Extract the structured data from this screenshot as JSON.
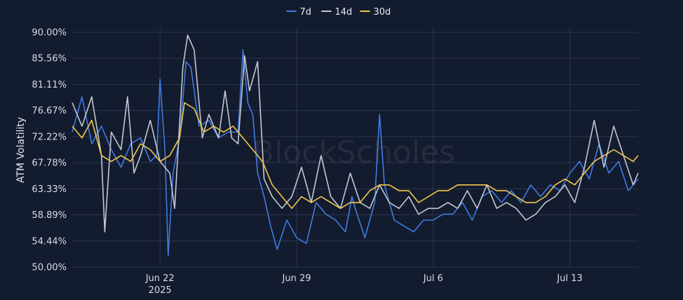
{
  "chart_data": {
    "type": "line",
    "watermark": "BlockScholes",
    "xlabel": "",
    "ylabel": "ATM Volatility",
    "x_ticks": [
      {
        "date": "2025-06-22",
        "label": "Jun 22",
        "sublabel": "2025"
      },
      {
        "date": "2025-06-29",
        "label": "Jun 29",
        "sublabel": ""
      },
      {
        "date": "2025-07-06",
        "label": "Jul 6",
        "sublabel": ""
      },
      {
        "date": "2025-07-13",
        "label": "Jul 13",
        "sublabel": ""
      }
    ],
    "x_range": [
      "2025-06-17T12:00",
      "2025-07-16T12:00"
    ],
    "y_ticks": [
      "50.00%",
      "54.44%",
      "58.89%",
      "63.33%",
      "67.78%",
      "72.22%",
      "76.67%",
      "81.11%",
      "85.56%",
      "90.00%"
    ],
    "ylim": [
      50,
      90
    ],
    "grid": true,
    "legend_position": "top-center",
    "series": [
      {
        "name": "7d",
        "color": "#3f7be0",
        "points": [
          [
            "2025-06-17T12:00",
            73
          ],
          [
            "2025-06-18T00:00",
            79
          ],
          [
            "2025-06-18T12:00",
            71
          ],
          [
            "2025-06-19T00:00",
            74
          ],
          [
            "2025-06-19T12:00",
            70
          ],
          [
            "2025-06-20T00:00",
            67
          ],
          [
            "2025-06-20T12:00",
            71
          ],
          [
            "2025-06-21T00:00",
            72
          ],
          [
            "2025-06-21T12:00",
            68
          ],
          [
            "2025-06-21T20:00",
            69
          ],
          [
            "2025-06-22T00:00",
            82
          ],
          [
            "2025-06-22T06:00",
            70
          ],
          [
            "2025-06-22T10:00",
            52
          ],
          [
            "2025-06-22T16:00",
            66
          ],
          [
            "2025-06-23T00:00",
            72
          ],
          [
            "2025-06-23T08:00",
            85
          ],
          [
            "2025-06-23T14:00",
            84
          ],
          [
            "2025-06-24T00:00",
            74
          ],
          [
            "2025-06-24T12:00",
            75
          ],
          [
            "2025-06-25T00:00",
            72
          ],
          [
            "2025-06-25T12:00",
            73
          ],
          [
            "2025-06-26T00:00",
            73
          ],
          [
            "2025-06-26T06:00",
            87
          ],
          [
            "2025-06-26T12:00",
            78
          ],
          [
            "2025-06-26T18:00",
            76
          ],
          [
            "2025-06-27T00:00",
            66
          ],
          [
            "2025-06-27T08:00",
            62
          ],
          [
            "2025-06-27T16:00",
            57
          ],
          [
            "2025-06-28T00:00",
            53
          ],
          [
            "2025-06-28T12:00",
            58
          ],
          [
            "2025-06-29T00:00",
            55
          ],
          [
            "2025-06-29T12:00",
            54
          ],
          [
            "2025-06-30T00:00",
            61
          ],
          [
            "2025-06-30T12:00",
            59
          ],
          [
            "2025-07-01T00:00",
            58
          ],
          [
            "2025-07-01T12:00",
            56
          ],
          [
            "2025-07-01T20:00",
            62
          ],
          [
            "2025-07-02T00:00",
            60
          ],
          [
            "2025-07-02T12:00",
            55
          ],
          [
            "2025-07-03T00:00",
            61
          ],
          [
            "2025-07-03T06:00",
            76
          ],
          [
            "2025-07-03T12:00",
            64
          ],
          [
            "2025-07-04T00:00",
            58
          ],
          [
            "2025-07-04T12:00",
            57
          ],
          [
            "2025-07-05T00:00",
            56
          ],
          [
            "2025-07-05T12:00",
            58
          ],
          [
            "2025-07-06T00:00",
            58
          ],
          [
            "2025-07-06T12:00",
            59
          ],
          [
            "2025-07-07T00:00",
            59
          ],
          [
            "2025-07-07T12:00",
            61
          ],
          [
            "2025-07-08T00:00",
            58
          ],
          [
            "2025-07-08T12:00",
            62
          ],
          [
            "2025-07-09T00:00",
            63
          ],
          [
            "2025-07-09T12:00",
            61
          ],
          [
            "2025-07-10T00:00",
            63
          ],
          [
            "2025-07-10T12:00",
            61
          ],
          [
            "2025-07-11T00:00",
            64
          ],
          [
            "2025-07-11T12:00",
            62
          ],
          [
            "2025-07-12T00:00",
            64
          ],
          [
            "2025-07-12T12:00",
            63
          ],
          [
            "2025-07-13T00:00",
            66
          ],
          [
            "2025-07-13T12:00",
            68
          ],
          [
            "2025-07-14T00:00",
            65
          ],
          [
            "2025-07-14T12:00",
            71
          ],
          [
            "2025-07-15T00:00",
            66
          ],
          [
            "2025-07-15T12:00",
            68
          ],
          [
            "2025-07-16T00:00",
            63
          ],
          [
            "2025-07-16T12:00",
            65
          ]
        ]
      },
      {
        "name": "14d",
        "color": "#c4c8d0",
        "points": [
          [
            "2025-06-17T12:00",
            78
          ],
          [
            "2025-06-18T00:00",
            74
          ],
          [
            "2025-06-18T12:00",
            79
          ],
          [
            "2025-06-19T00:00",
            69
          ],
          [
            "2025-06-19T04:00",
            56
          ],
          [
            "2025-06-19T12:00",
            73
          ],
          [
            "2025-06-20T00:00",
            70
          ],
          [
            "2025-06-20T08:00",
            79
          ],
          [
            "2025-06-20T16:00",
            66
          ],
          [
            "2025-06-21T00:00",
            69
          ],
          [
            "2025-06-21T12:00",
            75
          ],
          [
            "2025-06-22T00:00",
            68
          ],
          [
            "2025-06-22T12:00",
            66
          ],
          [
            "2025-06-22T18:00",
            60
          ],
          [
            "2025-06-23T04:00",
            84
          ],
          [
            "2025-06-23T10:00",
            89.5
          ],
          [
            "2025-06-23T18:00",
            87
          ],
          [
            "2025-06-24T04:00",
            72
          ],
          [
            "2025-06-24T12:00",
            76
          ],
          [
            "2025-06-25T00:00",
            72
          ],
          [
            "2025-06-25T08:00",
            80
          ],
          [
            "2025-06-25T16:00",
            72
          ],
          [
            "2025-06-26T00:00",
            71
          ],
          [
            "2025-06-26T08:00",
            86
          ],
          [
            "2025-06-26T14:00",
            80
          ],
          [
            "2025-06-27T00:00",
            85
          ],
          [
            "2025-06-27T08:00",
            65
          ],
          [
            "2025-06-27T18:00",
            62
          ],
          [
            "2025-06-28T06:00",
            60
          ],
          [
            "2025-06-28T18:00",
            62
          ],
          [
            "2025-06-29T06:00",
            67
          ],
          [
            "2025-06-29T18:00",
            61
          ],
          [
            "2025-06-30T06:00",
            69
          ],
          [
            "2025-06-30T18:00",
            62
          ],
          [
            "2025-07-01T06:00",
            60
          ],
          [
            "2025-07-01T18:00",
            66
          ],
          [
            "2025-07-02T06:00",
            61
          ],
          [
            "2025-07-02T18:00",
            60
          ],
          [
            "2025-07-03T06:00",
            64
          ],
          [
            "2025-07-03T18:00",
            61
          ],
          [
            "2025-07-04T06:00",
            60
          ],
          [
            "2025-07-04T18:00",
            62
          ],
          [
            "2025-07-05T06:00",
            59
          ],
          [
            "2025-07-05T18:00",
            60
          ],
          [
            "2025-07-06T06:00",
            60
          ],
          [
            "2025-07-06T18:00",
            61
          ],
          [
            "2025-07-07T06:00",
            60
          ],
          [
            "2025-07-07T18:00",
            63
          ],
          [
            "2025-07-08T06:00",
            60
          ],
          [
            "2025-07-08T18:00",
            64
          ],
          [
            "2025-07-09T06:00",
            60
          ],
          [
            "2025-07-09T18:00",
            61
          ],
          [
            "2025-07-10T06:00",
            60
          ],
          [
            "2025-07-10T18:00",
            58
          ],
          [
            "2025-07-11T06:00",
            59
          ],
          [
            "2025-07-11T18:00",
            61
          ],
          [
            "2025-07-12T06:00",
            62
          ],
          [
            "2025-07-12T18:00",
            64
          ],
          [
            "2025-07-13T06:00",
            61
          ],
          [
            "2025-07-13T18:00",
            67
          ],
          [
            "2025-07-14T06:00",
            75
          ],
          [
            "2025-07-14T18:00",
            67
          ],
          [
            "2025-07-15T06:00",
            74
          ],
          [
            "2025-07-15T18:00",
            69
          ],
          [
            "2025-07-16T06:00",
            64
          ],
          [
            "2025-07-16T12:00",
            66
          ]
        ]
      },
      {
        "name": "30d",
        "color": "#f2c94c",
        "points": [
          [
            "2025-06-17T12:00",
            74
          ],
          [
            "2025-06-18T00:00",
            72
          ],
          [
            "2025-06-18T12:00",
            75
          ],
          [
            "2025-06-19T00:00",
            69
          ],
          [
            "2025-06-19T12:00",
            68
          ],
          [
            "2025-06-20T00:00",
            69
          ],
          [
            "2025-06-20T12:00",
            68
          ],
          [
            "2025-06-21T00:00",
            71
          ],
          [
            "2025-06-21T12:00",
            70
          ],
          [
            "2025-06-22T00:00",
            68
          ],
          [
            "2025-06-22T12:00",
            69
          ],
          [
            "2025-06-23T00:00",
            72
          ],
          [
            "2025-06-23T06:00",
            78
          ],
          [
            "2025-06-23T18:00",
            77
          ],
          [
            "2025-06-24T06:00",
            73
          ],
          [
            "2025-06-24T18:00",
            74
          ],
          [
            "2025-06-25T06:00",
            73
          ],
          [
            "2025-06-25T18:00",
            74
          ],
          [
            "2025-06-26T06:00",
            72
          ],
          [
            "2025-06-26T18:00",
            70
          ],
          [
            "2025-06-27T06:00",
            68
          ],
          [
            "2025-06-27T18:00",
            64
          ],
          [
            "2025-06-28T06:00",
            62
          ],
          [
            "2025-06-28T18:00",
            60
          ],
          [
            "2025-06-29T06:00",
            62
          ],
          [
            "2025-06-29T18:00",
            61
          ],
          [
            "2025-06-30T06:00",
            62
          ],
          [
            "2025-06-30T18:00",
            61
          ],
          [
            "2025-07-01T06:00",
            60
          ],
          [
            "2025-07-01T18:00",
            61
          ],
          [
            "2025-07-02T06:00",
            61
          ],
          [
            "2025-07-02T18:00",
            63
          ],
          [
            "2025-07-03T06:00",
            64
          ],
          [
            "2025-07-03T18:00",
            64
          ],
          [
            "2025-07-04T06:00",
            63
          ],
          [
            "2025-07-04T18:00",
            63
          ],
          [
            "2025-07-05T06:00",
            61
          ],
          [
            "2025-07-05T18:00",
            62
          ],
          [
            "2025-07-06T06:00",
            63
          ],
          [
            "2025-07-06T18:00",
            63
          ],
          [
            "2025-07-07T06:00",
            64
          ],
          [
            "2025-07-07T18:00",
            64
          ],
          [
            "2025-07-08T06:00",
            64
          ],
          [
            "2025-07-08T18:00",
            64
          ],
          [
            "2025-07-09T06:00",
            63
          ],
          [
            "2025-07-09T18:00",
            63
          ],
          [
            "2025-07-10T06:00",
            62
          ],
          [
            "2025-07-10T18:00",
            61
          ],
          [
            "2025-07-11T06:00",
            61
          ],
          [
            "2025-07-11T18:00",
            62
          ],
          [
            "2025-07-12T06:00",
            64
          ],
          [
            "2025-07-12T18:00",
            65
          ],
          [
            "2025-07-13T06:00",
            64
          ],
          [
            "2025-07-13T18:00",
            66
          ],
          [
            "2025-07-14T06:00",
            68
          ],
          [
            "2025-07-14T18:00",
            69
          ],
          [
            "2025-07-15T06:00",
            70
          ],
          [
            "2025-07-15T18:00",
            69
          ],
          [
            "2025-07-16T06:00",
            68
          ],
          [
            "2025-07-16T12:00",
            69
          ]
        ]
      }
    ]
  }
}
